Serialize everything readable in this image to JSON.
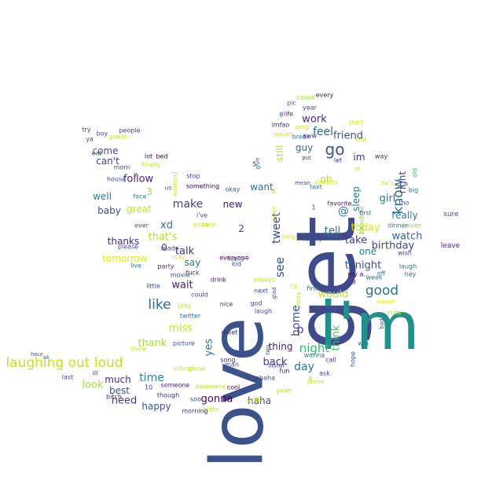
{
  "cloud": {
    "words": [
      {
        "text": "love",
        "color": "#3b528b"
      },
      {
        "text": "get",
        "color": "#3e4a89"
      },
      {
        "text": "i'm",
        "color": "#21908d"
      },
      {
        "text": "laughing out loud",
        "color": "#c2df23"
      },
      {
        "text": "like",
        "color": "#31688e"
      },
      {
        "text": "go",
        "color": "#3b528b"
      },
      {
        "text": "good",
        "color": "#2c728e"
      },
      {
        "text": "night",
        "color": "#35b779"
      },
      {
        "text": "day",
        "color": "#2a788e"
      },
      {
        "text": "back",
        "color": "#433e85"
      },
      {
        "text": "time",
        "color": "#26828e"
      },
      {
        "text": "know",
        "color": "#2c728e"
      },
      {
        "text": "work",
        "color": "#482878"
      },
      {
        "text": "feel",
        "color": "#31688e"
      },
      {
        "text": "friend",
        "color": "#3b528b"
      },
      {
        "text": "today",
        "color": "#d8e219"
      },
      {
        "text": "watch",
        "color": "#31688e"
      },
      {
        "text": "birthday",
        "color": "#404688"
      },
      {
        "text": "tonight",
        "color": "#3e4989"
      },
      {
        "text": "really",
        "color": "#25848e"
      },
      {
        "text": "girl",
        "color": "#2c728e"
      },
      {
        "text": "right",
        "color": "#3e4989"
      },
      {
        "text": "take",
        "color": "#443983"
      },
      {
        "text": "one",
        "color": "#277f8e"
      },
      {
        "text": "tell",
        "color": "#2c728e"
      },
      {
        "text": "im",
        "color": "#472d7b"
      },
      {
        "text": "sleep",
        "color": "#2a788e"
      },
      {
        "text": "oh",
        "color": "#bddf26"
      },
      {
        "text": "@",
        "color": "#287c8e"
      },
      {
        "text": "would",
        "color": "#b5de2b"
      },
      {
        "text": "think",
        "color": "#4ac16d"
      },
      {
        "text": "p",
        "color": "#414487"
      },
      {
        "text": "home",
        "color": "#3b528b"
      },
      {
        "text": "thing",
        "color": "#482475"
      },
      {
        "text": "see",
        "color": "#3b528b"
      },
      {
        "text": "tweet",
        "color": "#3e4989"
      },
      {
        "text": "want",
        "color": "#2a788e"
      },
      {
        "text": "still",
        "color": "#c0df25"
      },
      {
        "text": "guy",
        "color": "#2c728e"
      },
      {
        "text": "make",
        "color": "#423f85"
      },
      {
        "text": "new",
        "color": "#482173"
      },
      {
        "text": "2",
        "color": "#414487"
      },
      {
        "text": "talk",
        "color": "#472c7a"
      },
      {
        "text": "say",
        "color": "#2c728e"
      },
      {
        "text": "wait",
        "color": "#481a6c"
      },
      {
        "text": "miss",
        "color": "#c8e020"
      },
      {
        "text": "thank",
        "color": "#a8db34"
      },
      {
        "text": "yes",
        "color": "#2c728e"
      },
      {
        "text": "much",
        "color": "#46337f"
      },
      {
        "text": "best",
        "color": "#3b528b"
      },
      {
        "text": "look",
        "color": "#a0da39"
      },
      {
        "text": "need",
        "color": "#443b84"
      },
      {
        "text": "happy",
        "color": "#3b528b"
      },
      {
        "text": "gonna",
        "color": "#440154"
      },
      {
        "text": "haha",
        "color": "#3e4989"
      },
      {
        "text": "thanks",
        "color": "#482878"
      },
      {
        "text": "that's",
        "color": "#b5de2b"
      },
      {
        "text": "tomorrow",
        "color": "#e2e418"
      },
      {
        "text": "0",
        "color": "#46327e"
      },
      {
        "text": "xd",
        "color": "#2c728e"
      },
      {
        "text": "baby",
        "color": "#3b528b"
      },
      {
        "text": "great",
        "color": "#c2df23"
      },
      {
        "text": "well",
        "color": "#287d8e"
      },
      {
        "text": "3",
        "color": "#95d840"
      },
      {
        "text": "follow",
        "color": "#481d6f"
      },
      {
        "text": "can't",
        "color": "#443983"
      },
      {
        "text": "come",
        "color": "#3b528b"
      },
      {
        "text": "every",
        "color": "#481a6c"
      },
      {
        "text": "cause",
        "color": "#a2da37"
      },
      {
        "text": "pic",
        "color": "#2c728e"
      },
      {
        "text": "year",
        "color": "#3e4989"
      },
      {
        "text": "life",
        "color": "#481f70"
      },
      {
        "text": "lmfao",
        "color": "#472a7a"
      },
      {
        "text": "omg",
        "color": "#c2df23"
      },
      {
        "text": "never",
        "color": "#d8e219"
      },
      {
        "text": "break",
        "color": "#2c728e"
      },
      {
        "text": "aww",
        "color": "#472c7a"
      },
      {
        "text": "put",
        "color": "#46327e"
      },
      {
        "text": "let",
        "color": "#46337f"
      },
      {
        "text": "start",
        "color": "#d2e21b"
      },
      {
        "text": "shit",
        "color": "#c2df23"
      },
      {
        "text": "rt",
        "color": "#b8de29"
      },
      {
        "text": "way",
        "color": "#482475"
      },
      {
        "text": "mean",
        "color": "#3e4989"
      },
      {
        "text": "already",
        "color": "#d0e11c"
      },
      {
        "text": "text",
        "color": "#2c728e"
      },
      {
        "text": "he's",
        "color": "#c8e020"
      },
      {
        "text": "old",
        "color": "#35b779"
      },
      {
        "text": "big",
        "color": "#2c728e"
      },
      {
        "text": "tho",
        "color": "#3b528b"
      },
      {
        "text": "1",
        "color": "#3e4989"
      },
      {
        "text": "favorite",
        "color": "#481c6e"
      },
      {
        "text": "beautiful",
        "color": "#7ad151"
      },
      {
        "text": "first",
        "color": "#2c728e"
      },
      {
        "text": "sure",
        "color": "#3b528b"
      },
      {
        "text": "dinner",
        "color": "#2c728e"
      },
      {
        "text": "even",
        "color": "#90d743"
      },
      {
        "text": "leave",
        "color": "#482475"
      },
      {
        "text": "long",
        "color": "#d8e219"
      },
      {
        "text": "family",
        "color": "#3b528b"
      },
      {
        "text": "keep",
        "color": "#2c728e"
      },
      {
        "text": "wish",
        "color": "#3e4989"
      },
      {
        "text": "laugh",
        "color": "#2c728e"
      },
      {
        "text": "my a..",
        "color": "#440154"
      },
      {
        "text": "off",
        "color": "#31688e"
      },
      {
        "text": "hey",
        "color": "#2c728e"
      },
      {
        "text": "9",
        "color": "#482878"
      },
      {
        "text": "week",
        "color": "#2c728e"
      },
      {
        "text": "sweet",
        "color": "#dde318"
      },
      {
        "text": "cute",
        "color": "#b5de2b"
      },
      {
        "text": "bad",
        "color": "#3e4989"
      },
      {
        "text": "win",
        "color": "#2c728e"
      },
      {
        "text": "hope",
        "color": "#3b528b"
      },
      {
        "text": "call",
        "color": "#482878"
      },
      {
        "text": "ask",
        "color": "#3e4989"
      },
      {
        "text": "wanna",
        "color": "#2c728e"
      },
      {
        "text": "sister",
        "color": "#3e4989"
      },
      {
        "text": "fun",
        "color": "#482878"
      },
      {
        "text": "6",
        "color": "#c2df23"
      },
      {
        "text": "phone",
        "color": "#bddf26"
      },
      {
        "text": "yeah",
        "color": "#c2df23"
      },
      {
        "text": "hahaha",
        "color": "#3e4989"
      },
      {
        "text": "smile",
        "color": "#c8e020"
      },
      {
        "text": "cool",
        "color": "#440154"
      },
      {
        "text": "awesome",
        "color": "#c2df23"
      },
      {
        "text": "gotta",
        "color": "#d8e219"
      },
      {
        "text": "soo",
        "color": "#3e4989"
      },
      {
        "text": "morning",
        "color": "#46337f"
      },
      {
        "text": "though",
        "color": "#482878"
      },
      {
        "text": "someone",
        "color": "#481a6c"
      },
      {
        "text": "song",
        "color": "#482878"
      },
      {
        "text": "man",
        "color": "#3b528b"
      },
      {
        "text": "school",
        "color": "#c2df23"
      },
      {
        "text": "game",
        "color": "#c8e020"
      },
      {
        "text": "picture",
        "color": "#3b528b"
      },
      {
        "text": "show",
        "color": "#c2df23"
      },
      {
        "text": "ill",
        "color": "#472c7a"
      },
      {
        "text": "10",
        "color": "#3e4989"
      },
      {
        "text": "bitch",
        "color": "#482475"
      },
      {
        "text": "last",
        "color": "#3e4989"
      },
      {
        "text": "ok",
        "color": "#2c728e"
      },
      {
        "text": "hour",
        "color": "#3b528b"
      },
      {
        "text": "meet",
        "color": "#472c7a"
      },
      {
        "text": "nice",
        "color": "#482878"
      },
      {
        "text": "god",
        "color": "#3e4989"
      },
      {
        "text": "laugh",
        "color": "#3e4989"
      },
      {
        "text": "always",
        "color": "#c2df23"
      },
      {
        "text": "two",
        "color": "#3b528b"
      },
      {
        "text": "glad",
        "color": "#3b528b"
      },
      {
        "text": "i'll",
        "color": "#c2df23"
      },
      {
        "text": "find",
        "color": "#2c728e"
      },
      {
        "text": "pretty",
        "color": "#c8e020"
      },
      {
        "text": "n",
        "color": "#3b528b"
      },
      {
        "text": "next",
        "color": "#3e4989"
      },
      {
        "text": "twitter",
        "color": "#2c728e"
      },
      {
        "text": "play",
        "color": "#c2df23"
      },
      {
        "text": "could",
        "color": "#3e4989"
      },
      {
        "text": "drink",
        "color": "#482475"
      },
      {
        "text": "fuck",
        "color": "#481a6c"
      },
      {
        "text": "movie",
        "color": "#3b528b"
      },
      {
        "text": "little",
        "color": "#3e4989"
      },
      {
        "text": "live",
        "color": "#2c728e"
      },
      {
        "text": "stay",
        "color": "#d8e219"
      },
      {
        "text": "please",
        "color": "#3b528b"
      },
      {
        "text": "everyone",
        "color": "#440154"
      },
      {
        "text": "kid",
        "color": "#3e4989"
      },
      {
        "text": "funny",
        "color": "#3b528b"
      },
      {
        "text": "party",
        "color": "#472c7a"
      },
      {
        "text": "ready",
        "color": "#3e4989"
      },
      {
        "text": "i've",
        "color": "#3b528b"
      },
      {
        "text": "since",
        "color": "#c2df23"
      },
      {
        "text": "soon",
        "color": "#d8e219"
      },
      {
        "text": "okay",
        "color": "#3b528b"
      },
      {
        "text": "wake",
        "color": "#d8e219"
      },
      {
        "text": "4",
        "color": "#c2df23"
      },
      {
        "text": "5",
        "color": "#440154"
      },
      {
        "text": "give",
        "color": "#2c728e"
      },
      {
        "text": "8",
        "color": "#3b528b"
      },
      {
        "text": "stop",
        "color": "#3e4989"
      },
      {
        "text": "something",
        "color": "#440154"
      },
      {
        "text": "weekend",
        "color": "#c2df23"
      },
      {
        "text": "us",
        "color": "#2c728e"
      },
      {
        "text": "finally",
        "color": "#c2df23"
      },
      {
        "text": "7",
        "color": "#3b528b"
      },
      {
        "text": "face",
        "color": "#2c728e"
      },
      {
        "text": "ever",
        "color": "#3b528b"
      },
      {
        "text": "people",
        "color": "#3e4989"
      },
      {
        "text": "house",
        "color": "#3b528b"
      },
      {
        "text": "mom",
        "color": "#3b528b"
      },
      {
        "text": "eat",
        "color": "#2c728e"
      },
      {
        "text": "lot",
        "color": "#440154"
      },
      {
        "text": "bed",
        "color": "#440154"
      },
      {
        "text": "guess",
        "color": "#c2df23"
      },
      {
        "text": "boy",
        "color": "#3e4989"
      },
      {
        "text": "ya",
        "color": "#3b528b"
      },
      {
        "text": "try",
        "color": "#3e4989"
      }
    ]
  }
}
